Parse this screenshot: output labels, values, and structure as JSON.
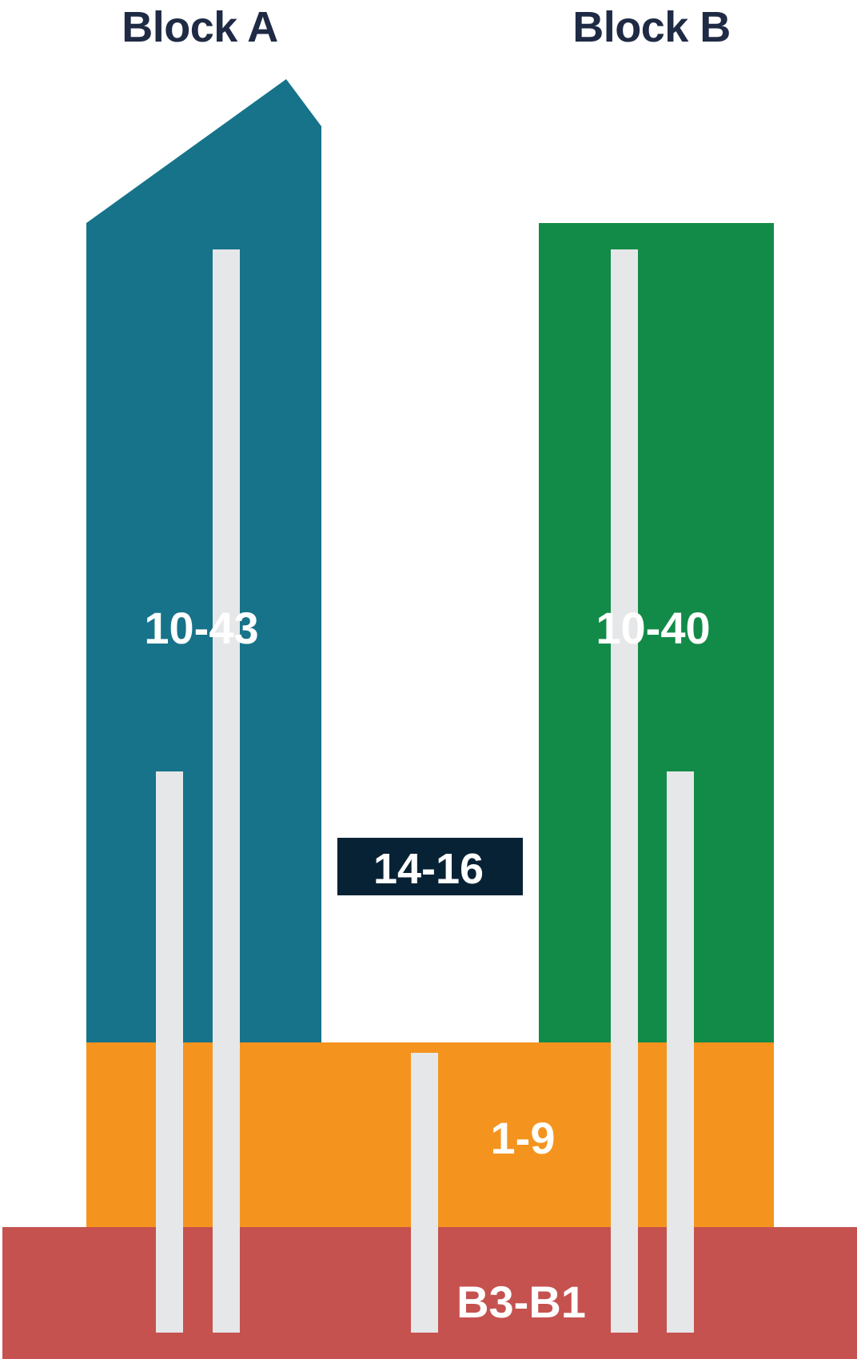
{
  "blocks": {
    "a": {
      "title": "Block A",
      "floors": "10-43",
      "color": "#16738a"
    },
    "b": {
      "title": "Block B",
      "floors": "10-40",
      "color": "#138b48"
    }
  },
  "bridge": {
    "floors": "14-16",
    "color": "#082235"
  },
  "podium": {
    "floors": "1-9",
    "color": "#f4941f"
  },
  "basement": {
    "floors": "B3-B1",
    "color": "#c5524f"
  },
  "core_color": "#e6e7e9"
}
